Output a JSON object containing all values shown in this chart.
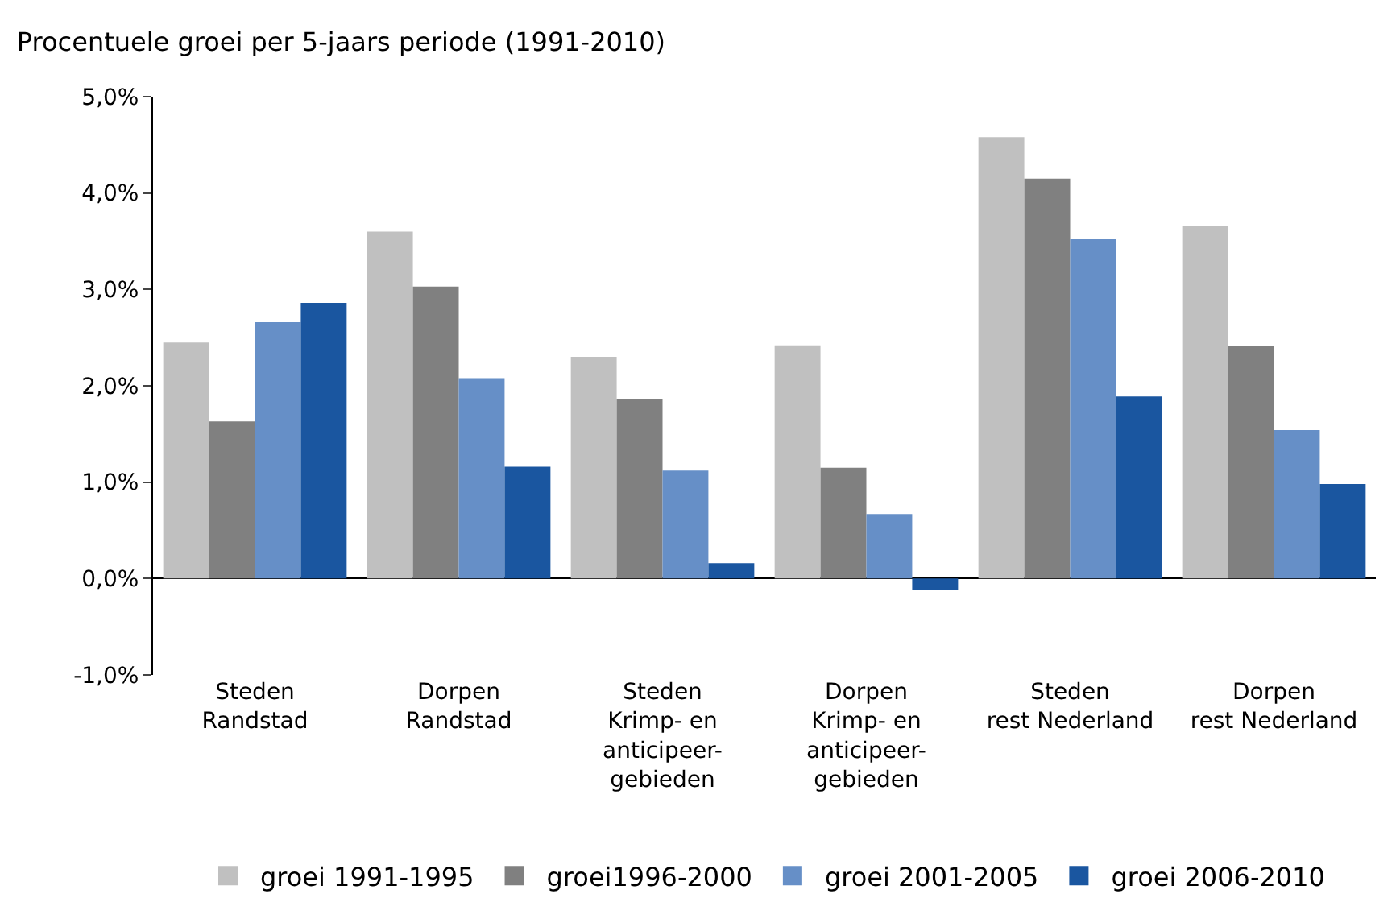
{
  "chart_data": {
    "type": "bar",
    "title": "Procentuele groei per 5-jaars periode (1991-2010)",
    "categories": [
      "Steden\nRandstad",
      "Dorpen\nRandstad",
      "Steden\nKrimp- en\nanticipeer-\ngebieden",
      "Dorpen\nKrimp- en\nanticipeer-\ngebieden",
      "Steden\nrest Nederland",
      "Dorpen\nrest Nederland"
    ],
    "series": [
      {
        "name": "groei 1991-1995",
        "color": "#c0c0c0",
        "values": [
          2.45,
          3.6,
          2.3,
          2.42,
          4.58,
          3.66
        ]
      },
      {
        "name": "groei1996-2000",
        "color": "#808080",
        "values": [
          1.63,
          3.03,
          1.86,
          1.15,
          4.15,
          2.41
        ]
      },
      {
        "name": "groei 2001-2005",
        "color": "#668fc7",
        "values": [
          2.66,
          2.08,
          1.12,
          0.67,
          3.52,
          1.54
        ]
      },
      {
        "name": "groei 2006-2010",
        "color": "#1a56a0",
        "values": [
          2.86,
          1.16,
          0.16,
          -0.12,
          1.89,
          0.98
        ]
      }
    ],
    "ylim": [
      -1,
      5
    ],
    "yticks": [
      {
        "value": -1,
        "label": "-1,0%"
      },
      {
        "value": 0,
        "label": "0,0%"
      },
      {
        "value": 1,
        "label": "1,0%"
      },
      {
        "value": 2,
        "label": "2,0%"
      },
      {
        "value": 3,
        "label": "3,0%"
      },
      {
        "value": 4,
        "label": "4,0%"
      },
      {
        "value": 5,
        "label": "5,0%"
      }
    ],
    "legend": "bottom"
  }
}
